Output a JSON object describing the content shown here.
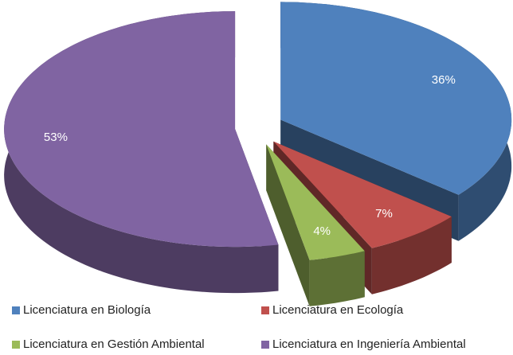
{
  "chart_data": {
    "type": "pie",
    "categories": [
      "Licenciatura en Biología",
      "Licenciatura en Ecología",
      "Licenciatura en Gestión Ambiental",
      "Licenciatura en Ingeniería Ambiental"
    ],
    "values": [
      36,
      7,
      4,
      53
    ],
    "value_labels": [
      "36%",
      "7%",
      "4%",
      "53%"
    ],
    "colors": [
      "#4f81bd",
      "#c0504d",
      "#9bbb59",
      "#8064a2"
    ],
    "legend": "bottom"
  }
}
